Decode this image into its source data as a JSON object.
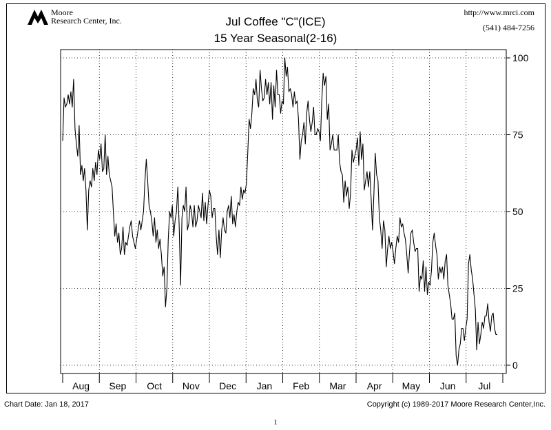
{
  "header": {
    "logo_line1": "Moore",
    "logo_line2": "Research Center, Inc.",
    "url": "http://www.mrci.com",
    "phone": "(541) 484-7256"
  },
  "footer": {
    "chart_date": "Chart Date: Jan 18, 2017",
    "copyright": "Copyright (c) 1989-2017 Moore Research Center,Inc.",
    "page_number": "1"
  },
  "chart_data": {
    "type": "line",
    "title": "Jul Coffee \"C\"(ICE)",
    "subtitle": "15 Year Seasonal(2-16)",
    "xlabel": "",
    "ylabel": "",
    "ylim": [
      0,
      100
    ],
    "yticks": [
      0,
      25,
      50,
      75,
      100
    ],
    "months": [
      "Aug",
      "Sep",
      "Oct",
      "Nov",
      "Dec",
      "Jan",
      "Feb",
      "Mar",
      "Apr",
      "May",
      "Jun",
      "Jul"
    ],
    "grid": true,
    "series": [
      {
        "values": [
          73,
          87,
          84,
          85,
          88,
          85,
          89,
          84,
          93,
          77,
          72,
          68,
          78,
          62,
          65,
          60,
          64,
          57,
          44,
          57,
          60,
          58,
          64,
          60,
          66,
          62,
          70,
          67,
          72,
          63,
          64,
          75,
          62,
          68,
          62,
          60,
          58,
          50,
          42,
          46,
          40,
          43,
          36,
          38,
          45,
          36,
          40,
          39,
          42,
          45,
          47,
          42,
          40,
          38,
          41,
          44,
          47,
          44,
          47,
          50,
          60,
          67,
          60,
          52,
          50,
          47,
          42,
          48,
          40,
          44,
          38,
          41,
          36,
          29,
          32,
          19,
          25,
          41,
          50,
          48,
          52,
          42,
          47,
          50,
          58,
          45,
          26,
          48,
          52,
          50,
          58,
          44,
          46,
          52,
          50,
          45,
          52,
          45,
          47,
          52,
          50,
          48,
          56,
          47,
          53,
          46,
          52,
          57,
          55,
          48,
          51,
          51,
          42,
          36,
          44,
          35,
          44,
          48,
          44,
          43,
          50,
          52,
          48,
          55,
          46,
          49,
          45,
          50,
          53,
          52,
          58,
          54,
          57,
          56,
          59,
          69,
          80,
          77,
          82,
          90,
          88,
          93,
          86,
          84,
          96,
          90,
          86,
          87,
          93,
          88,
          92,
          85,
          92,
          80,
          91,
          84,
          96,
          88,
          88,
          82,
          86,
          85,
          100,
          94,
          97,
          89,
          90,
          88,
          84,
          89,
          85,
          86,
          80,
          67,
          73,
          75,
          79,
          72,
          82,
          86,
          80,
          76,
          79,
          84,
          75,
          75,
          77,
          76,
          73,
          86,
          95,
          91,
          94,
          80,
          85,
          70,
          72,
          75,
          70,
          70,
          70,
          75,
          66,
          63,
          62,
          53,
          60,
          55,
          58,
          51,
          56,
          70,
          66,
          68,
          70,
          74,
          65,
          76,
          67,
          72,
          57,
          60,
          63,
          58,
          63,
          54,
          44,
          56,
          69,
          62,
          60,
          48,
          44,
          38,
          47,
          44,
          32,
          38,
          42,
          38,
          40,
          37,
          33,
          38,
          42,
          40,
          48,
          45,
          46,
          43,
          41,
          36,
          30,
          37,
          43,
          44,
          40,
          37,
          38,
          38,
          24,
          29,
          28,
          34,
          24,
          32,
          23,
          27,
          26,
          31,
          40,
          43,
          39,
          36,
          28,
          32,
          30,
          32,
          28,
          34,
          36,
          26,
          23,
          20,
          15,
          15,
          17,
          3,
          0,
          5,
          7,
          12,
          12,
          8,
          12,
          15,
          33,
          36,
          31,
          28,
          23,
          18,
          5,
          14,
          7,
          10,
          14,
          12,
          16,
          16,
          20,
          14,
          11,
          16,
          17,
          12,
          10,
          10
        ]
      }
    ]
  }
}
